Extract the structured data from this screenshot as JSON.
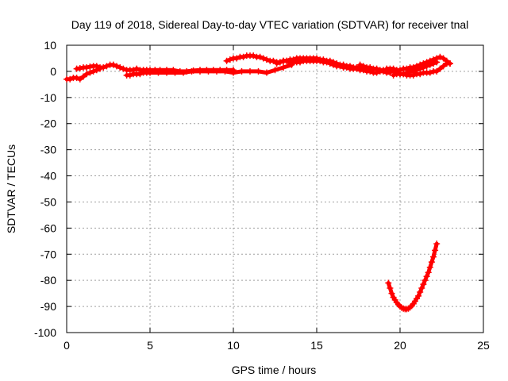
{
  "chart_data": {
    "type": "scatter",
    "title": "Day 119 of 2018, Sidereal Day-to-day VTEC variation (SDTVAR) for receiver tnal",
    "xlabel": "GPS time / hours",
    "ylabel": "SDTVAR / TECUs",
    "xlim": [
      0,
      25
    ],
    "ylim": [
      -100,
      10
    ],
    "xticks": [
      0,
      5,
      10,
      15,
      20,
      25
    ],
    "yticks": [
      10,
      0,
      -10,
      -20,
      -30,
      -40,
      -50,
      -60,
      -70,
      -80,
      -90,
      -100
    ],
    "grid": true,
    "marker_color": "#ff0000",
    "series": [
      {
        "x": [
          0.0,
          0.2,
          0.4,
          0.6,
          0.8,
          1.0,
          1.2,
          1.4,
          1.6,
          1.8,
          2.0
        ],
        "y": [
          -3.0,
          -3.0,
          -2.5,
          -2.5,
          -3.0,
          -2.0,
          -1.0,
          -0.5,
          0.0,
          0.5,
          1.0
        ]
      },
      {
        "x": [
          0.6,
          0.8,
          1.0,
          1.2,
          1.4,
          1.6,
          1.8,
          2.0,
          2.2,
          2.4,
          2.6,
          2.8,
          3.0,
          3.2,
          3.4,
          3.6,
          3.8,
          4.0,
          4.2,
          4.4,
          4.6,
          4.8,
          5.0,
          5.3,
          5.6,
          6.0,
          6.4,
          6.8,
          7.2,
          7.6,
          8.0,
          8.4,
          8.8,
          9.2,
          9.6,
          10.0
        ],
        "y": [
          1.0,
          1.2,
          1.5,
          1.5,
          1.8,
          2.0,
          2.0,
          1.5,
          1.5,
          2.0,
          2.5,
          2.5,
          2.0,
          1.5,
          1.0,
          0.5,
          0.5,
          0.5,
          1.0,
          0.5,
          0.5,
          0.5,
          0.5,
          0.5,
          0.5,
          0.5,
          0.5,
          0.0,
          0.0,
          0.3,
          0.5,
          0.5,
          0.5,
          0.5,
          0.5,
          0.5
        ]
      },
      {
        "x": [
          3.6,
          3.8,
          4.0,
          4.2,
          4.4,
          4.6,
          4.8,
          5.0,
          5.5,
          6.0,
          6.5,
          7.0,
          7.5,
          8.0,
          8.5,
          9.0,
          9.5,
          10.0,
          10.5,
          11.0,
          11.5,
          12.0,
          12.5,
          13.0,
          13.5
        ],
        "y": [
          -1.5,
          -1.5,
          -1.0,
          -1.0,
          -1.0,
          -0.5,
          -0.5,
          -0.5,
          -0.5,
          -0.5,
          -0.5,
          -0.5,
          0.0,
          0.0,
          0.0,
          0.0,
          0.0,
          -0.5,
          0.0,
          0.0,
          0.0,
          -0.5,
          0.5,
          1.5,
          2.5
        ]
      },
      {
        "x": [
          9.6,
          9.8,
          10.0,
          10.2,
          10.4,
          10.6,
          10.8,
          11.0,
          11.2,
          11.4,
          11.6,
          11.8,
          12.0,
          12.2,
          12.4,
          12.6,
          12.8,
          13.0,
          13.2,
          13.4
        ],
        "y": [
          4.0,
          4.5,
          5.0,
          5.0,
          5.5,
          5.5,
          6.0,
          6.0,
          6.0,
          5.5,
          5.5,
          5.0,
          4.5,
          4.0,
          4.0,
          3.5,
          3.5,
          4.0,
          4.0,
          4.0
        ]
      },
      {
        "x": [
          12.6,
          12.8,
          13.0,
          13.2,
          13.4,
          13.6,
          13.8,
          14.0,
          14.2,
          14.4,
          14.6,
          14.8,
          15.0,
          15.2,
          15.4,
          15.6,
          15.8,
          16.0,
          16.2,
          16.4,
          16.6,
          16.8,
          17.0,
          17.2,
          17.4,
          17.6,
          17.8,
          18.0
        ],
        "y": [
          3.0,
          3.5,
          4.0,
          4.0,
          4.5,
          4.5,
          5.0,
          5.0,
          5.0,
          5.0,
          5.0,
          5.0,
          5.0,
          4.5,
          4.5,
          4.0,
          4.0,
          3.5,
          3.0,
          2.5,
          2.5,
          2.0,
          2.0,
          1.5,
          1.5,
          1.5,
          1.0,
          1.0
        ]
      },
      {
        "x": [
          13.4,
          13.6,
          13.8,
          14.0,
          14.2,
          14.4,
          14.6,
          14.8,
          15.0,
          15.2,
          15.4,
          15.6,
          15.8,
          16.0,
          16.2,
          16.4,
          16.6,
          16.8,
          17.0,
          17.2,
          17.4,
          17.6,
          17.8,
          18.0,
          18.2,
          18.4,
          18.6,
          18.8,
          19.0,
          19.2,
          19.4
        ],
        "y": [
          3.0,
          3.5,
          3.5,
          3.5,
          4.0,
          4.0,
          4.0,
          4.0,
          4.0,
          4.0,
          3.5,
          3.5,
          3.0,
          2.5,
          2.0,
          2.0,
          1.5,
          1.5,
          1.0,
          1.0,
          1.0,
          0.5,
          0.5,
          0.0,
          0.0,
          -0.5,
          -0.5,
          0.0,
          0.0,
          -0.5,
          -0.5
        ]
      },
      {
        "x": [
          17.6,
          17.8,
          18.0,
          18.2,
          18.4,
          18.6,
          18.8,
          19.0,
          19.2,
          19.4,
          19.6,
          19.8,
          20.0,
          20.2,
          20.4,
          20.6,
          20.8,
          21.0,
          21.2,
          21.4,
          21.6,
          21.8,
          22.0,
          22.2
        ],
        "y": [
          2.5,
          2.0,
          1.5,
          1.5,
          1.0,
          1.0,
          0.5,
          0.5,
          0.5,
          0.0,
          0.0,
          -0.5,
          -1.0,
          -1.0,
          -0.5,
          0.0,
          0.0,
          0.5,
          1.0,
          1.5,
          2.0,
          2.5,
          3.0,
          3.5
        ]
      },
      {
        "x": [
          19.2,
          19.4,
          19.6,
          19.8,
          20.0,
          20.2,
          20.4,
          20.6,
          20.8,
          21.0,
          21.2,
          21.4,
          21.6,
          21.8,
          22.0,
          22.2,
          22.4,
          22.6,
          22.8,
          23.0
        ],
        "y": [
          1.0,
          1.0,
          1.0,
          0.5,
          0.5,
          1.0,
          1.0,
          1.5,
          1.5,
          2.0,
          2.5,
          3.0,
          3.5,
          4.0,
          4.5,
          5.0,
          5.5,
          5.0,
          4.0,
          3.0
        ]
      },
      {
        "x": [
          19.6,
          19.8,
          20.0,
          20.2,
          20.4,
          20.6,
          20.8,
          21.0,
          21.2,
          21.4,
          21.6,
          21.8,
          22.0,
          22.2,
          22.4,
          22.6,
          22.8,
          23.0
        ],
        "y": [
          -1.5,
          -1.0,
          -1.0,
          -1.0,
          -1.5,
          -1.5,
          -1.5,
          -1.0,
          -1.0,
          -0.5,
          -0.5,
          -0.5,
          0.0,
          0.0,
          1.0,
          2.0,
          3.0,
          3.0
        ]
      },
      {
        "x": [
          19.3,
          19.4,
          19.5,
          19.6,
          19.7,
          19.8,
          19.9,
          20.0,
          20.1,
          20.2,
          20.3,
          20.4,
          20.5,
          20.6,
          20.7,
          20.8,
          20.9,
          21.0,
          21.1,
          21.2,
          21.3,
          21.4,
          21.5,
          21.6,
          21.7,
          21.8,
          21.9,
          22.0,
          22.1,
          22.2
        ],
        "y": [
          -81,
          -83,
          -85,
          -86.5,
          -87.5,
          -88.5,
          -89.3,
          -90,
          -90.5,
          -90.8,
          -91,
          -91,
          -90.8,
          -90.4,
          -89.8,
          -89,
          -88,
          -87,
          -86,
          -84.5,
          -83,
          -81.5,
          -80,
          -78.5,
          -77,
          -75,
          -73,
          -71,
          -68.5,
          -66
        ]
      }
    ]
  }
}
